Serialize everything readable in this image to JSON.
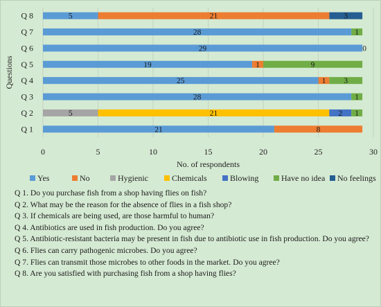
{
  "chart_data": {
    "type": "bar",
    "orientation": "horizontal",
    "stacked": true,
    "categories": [
      "Q 1",
      "Q 2",
      "Q 3",
      "Q 4",
      "Q 5",
      "Q 6",
      "Q 7",
      "Q 8"
    ],
    "series": [
      {
        "name": "Yes",
        "color": "#5b9bd5",
        "values": [
          21,
          0,
          28,
          25,
          19,
          29,
          28,
          5
        ]
      },
      {
        "name": "No",
        "color": "#ed7d31",
        "values": [
          8,
          0,
          0,
          1,
          1,
          0,
          0,
          21
        ]
      },
      {
        "name": "Hygienic",
        "color": "#a5a5a5",
        "values": [
          0,
          5,
          0,
          0,
          0,
          0,
          0,
          0
        ]
      },
      {
        "name": "Chemicals",
        "color": "#ffc000",
        "values": [
          0,
          21,
          0,
          0,
          0,
          0,
          0,
          0
        ]
      },
      {
        "name": "Blowing",
        "color": "#4472c4",
        "values": [
          0,
          2,
          0,
          0,
          0,
          0,
          0,
          0
        ]
      },
      {
        "name": "Have no idea",
        "color": "#70ad47",
        "values": [
          0,
          1,
          1,
          3,
          9,
          0,
          1,
          0
        ]
      },
      {
        "name": "No feelings",
        "color": "#255e91",
        "values": [
          0,
          0,
          0,
          0,
          0,
          0,
          0,
          3
        ]
      }
    ],
    "data_labels": [
      [
        "21",
        "8"
      ],
      [
        "5",
        "21",
        "2",
        "1"
      ],
      [
        "28",
        "0",
        "1"
      ],
      [
        "25",
        "1",
        "3"
      ],
      [
        "19",
        "1",
        "9"
      ],
      [
        "29",
        "0"
      ],
      [
        "28",
        "1"
      ],
      [
        "5",
        "21",
        "3"
      ]
    ],
    "xlabel": "No. of respondents",
    "ylabel": "Questions",
    "xlim": [
      0,
      30
    ],
    "xticks": [
      0,
      5,
      10,
      15,
      20,
      25,
      30
    ],
    "grid": true,
    "legend": "bottom"
  },
  "questions": [
    "Q 1. Do you purchase fish from a shop having flies on fish?",
    "Q 2. What may be the reason for the absence of flies in a fish shop?",
    "Q 3. If chemicals are being used, are those harmful to human?",
    "Q 4. Antibiotics are used in fish production. Do you agree?",
    "Q 5. Antibiotic-resistant bacteria may be present in fish due to antibiotic use in fish production. Do you agree?",
    "Q 6. Flies can carry pathogenic microbes. Do you agree?",
    "Q 7. Flies can transmit those microbes to other foods in the market. Do you agree?",
    "Q 8. Are you satisfied with purchasing fish from a shop having flies?"
  ]
}
